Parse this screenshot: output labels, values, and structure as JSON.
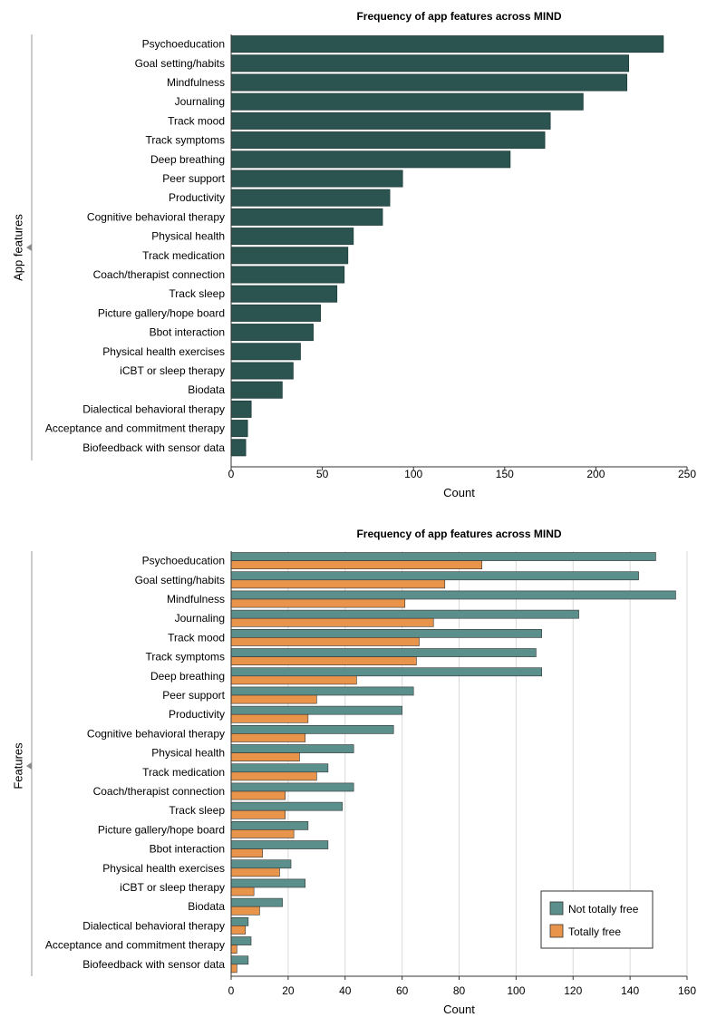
{
  "chart_data": [
    {
      "type": "bar",
      "orientation": "horizontal",
      "title": "Frequency of app features across MIND",
      "xlabel": "Count",
      "ylabel": "App features",
      "xlim": [
        0,
        250
      ],
      "xticks": [
        0,
        50,
        100,
        150,
        200,
        250
      ],
      "categories": [
        "Psychoeducation",
        "Goal setting/habits",
        "Mindfulness",
        "Journaling",
        "Track mood",
        "Track symptoms",
        "Deep breathing",
        "Peer support",
        "Productivity",
        "Cognitive behavioral therapy",
        "Physical health",
        "Track medication",
        "Coach/therapist connection",
        "Track sleep",
        "Picture gallery/hope board",
        "Bbot interaction",
        "Physical health exercises",
        "iCBT or sleep therapy",
        "Biodata",
        "Dialectical behavioral therapy",
        "Acceptance and commitment therapy",
        "Biofeedback with sensor data"
      ],
      "series": [
        {
          "name": "Count",
          "color": "#2b5350",
          "values": [
            237,
            218,
            217,
            193,
            175,
            172,
            153,
            94,
            87,
            83,
            67,
            64,
            62,
            58,
            49,
            45,
            38,
            34,
            28,
            11,
            9,
            8
          ]
        }
      ]
    },
    {
      "type": "bar",
      "orientation": "horizontal",
      "title": "Frequency of app features across MIND",
      "xlabel": "Count",
      "ylabel": "Features",
      "xlim": [
        0,
        160
      ],
      "xticks": [
        0,
        20,
        40,
        60,
        80,
        100,
        120,
        140,
        160
      ],
      "grid": true,
      "legend_position": "bottom-right",
      "categories": [
        "Psychoeducation",
        "Goal setting/habits",
        "Mindfulness",
        "Journaling",
        "Track mood",
        "Track symptoms",
        "Deep breathing",
        "Peer support",
        "Productivity",
        "Cognitive behavioral therapy",
        "Physical health",
        "Track medication",
        "Coach/therapist connection",
        "Track sleep",
        "Picture gallery/hope board",
        "Bbot interaction",
        "Physical health exercises",
        "iCBT or sleep therapy",
        "Biodata",
        "Dialectical behavioral therapy",
        "Acceptance and commitment therapy",
        "Biofeedback with sensor data"
      ],
      "series": [
        {
          "name": "Not totally free",
          "color": "#5a8f8c",
          "values": [
            149,
            143,
            156,
            122,
            109,
            107,
            109,
            64,
            60,
            57,
            43,
            34,
            43,
            39,
            27,
            34,
            21,
            26,
            18,
            6,
            7,
            6
          ]
        },
        {
          "name": "Totally free",
          "color": "#e8944a",
          "values": [
            88,
            75,
            61,
            71,
            66,
            65,
            44,
            30,
            27,
            26,
            24,
            30,
            19,
            19,
            22,
            11,
            17,
            8,
            10,
            5,
            2,
            2
          ]
        }
      ]
    }
  ]
}
